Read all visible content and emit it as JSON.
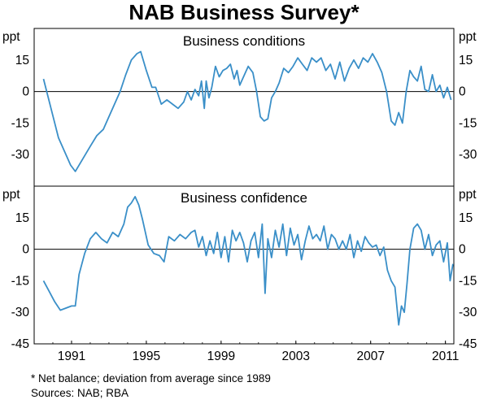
{
  "chart_data": {
    "type": "line",
    "title": "NAB Business Survey*",
    "footnote": "*    Net balance; deviation from average since 1989",
    "sources": "Sources: NAB; RBA",
    "x_range": [
      1989.0,
      2011.45
    ],
    "x_ticks": [
      "1991",
      "1995",
      "1999",
      "2003",
      "2007",
      "2011"
    ],
    "line_color": "#3a8fc8",
    "panels": [
      {
        "title": "Business conditions",
        "unit": "ppt",
        "ylim": [
          -45,
          30
        ],
        "y_ticks": [
          "15",
          "0",
          "-15",
          "-30"
        ],
        "y_tick_values": [
          15,
          0,
          -15,
          -30
        ],
        "series": [
          {
            "name": "Business conditions",
            "x": [
              1989.5,
              1989.9,
              1990.3,
              1990.7,
              1990.95,
              1991.2,
              1991.6,
              1992.0,
              1992.35,
              1992.7,
              1993.0,
              1993.3,
              1993.6,
              1993.9,
              1994.2,
              1994.5,
              1994.7,
              1995.0,
              1995.3,
              1995.5,
              1995.8,
              1996.1,
              1996.4,
              1996.7,
              1997.0,
              1997.2,
              1997.4,
              1997.6,
              1997.8,
              1997.95,
              1998.1,
              1998.2,
              1998.35,
              1998.5,
              1998.7,
              1998.9,
              1999.1,
              1999.3,
              1999.5,
              1999.7,
              1999.85,
              2000.0,
              2000.2,
              2000.45,
              2000.7,
              2000.9,
              2001.1,
              2001.3,
              2001.5,
              2001.7,
              2001.9,
              2002.1,
              2002.35,
              2002.6,
              2002.85,
              2003.1,
              2003.35,
              2003.6,
              2003.85,
              2004.1,
              2004.35,
              2004.6,
              2004.85,
              2005.1,
              2005.35,
              2005.6,
              2005.85,
              2006.1,
              2006.35,
              2006.6,
              2006.85,
              2007.1,
              2007.35,
              2007.6,
              2007.85,
              2008.1,
              2008.3,
              2008.5,
              2008.7,
              2008.9,
              2009.1,
              2009.3,
              2009.5,
              2009.7,
              2009.9,
              2010.1,
              2010.3,
              2010.5,
              2010.7,
              2010.9,
              2011.1,
              2011.3
            ],
            "y": [
              6,
              -8,
              -22,
              -30,
              -35,
              -38,
              -32,
              -26,
              -21,
              -18,
              -12,
              -6,
              0,
              8,
              15,
              18,
              19,
              10,
              2,
              2,
              -6,
              -4,
              -6,
              -8,
              -5,
              0,
              -4,
              1,
              -2,
              5,
              -8,
              5,
              -3,
              2,
              12,
              7,
              10,
              11,
              13,
              6,
              10,
              3,
              7,
              12,
              9,
              0,
              -12,
              -14,
              -13,
              -3,
              0,
              4,
              11,
              9,
              12,
              16,
              13,
              10,
              16,
              14,
              16,
              10,
              13,
              6,
              14,
              5,
              11,
              15,
              11,
              16,
              14,
              18,
              14,
              9,
              0,
              -14,
              -16,
              -10,
              -15,
              0,
              10,
              7,
              5,
              12,
              1,
              0,
              8,
              0,
              3,
              -3,
              2,
              -4
            ]
          }
        ]
      },
      {
        "title": "Business confidence",
        "unit": "ppt",
        "ylim": [
          -45,
          30
        ],
        "y_ticks": [
          "15",
          "0",
          "-15",
          "-30",
          "-45"
        ],
        "y_tick_values": [
          15,
          0,
          -15,
          -30,
          -45
        ],
        "series": [
          {
            "name": "Business confidence",
            "x": [
              1989.5,
              1989.8,
              1990.1,
              1990.4,
              1990.7,
              1991.0,
              1991.2,
              1991.4,
              1991.7,
              1992.0,
              1992.3,
              1992.6,
              1992.9,
              1993.2,
              1993.5,
              1993.8,
              1994.0,
              1994.2,
              1994.4,
              1994.6,
              1994.8,
              1995.1,
              1995.4,
              1995.7,
              1995.95,
              1996.2,
              1996.5,
              1996.8,
              1997.1,
              1997.4,
              1997.6,
              1997.8,
              1998.0,
              1998.2,
              1998.4,
              1998.6,
              1998.8,
              1999.0,
              1999.2,
              1999.4,
              1999.6,
              1999.8,
              2000.0,
              2000.2,
              2000.4,
              2000.6,
              2000.8,
              2001.0,
              2001.2,
              2001.35,
              2001.5,
              2001.7,
              2001.9,
              2002.1,
              2002.3,
              2002.5,
              2002.7,
              2002.9,
              2003.1,
              2003.3,
              2003.5,
              2003.7,
              2003.9,
              2004.1,
              2004.3,
              2004.5,
              2004.7,
              2004.9,
              2005.1,
              2005.3,
              2005.5,
              2005.7,
              2005.9,
              2006.1,
              2006.3,
              2006.5,
              2006.7,
              2006.9,
              2007.1,
              2007.3,
              2007.5,
              2007.7,
              2007.9,
              2008.1,
              2008.3,
              2008.5,
              2008.65,
              2008.8,
              2008.95,
              2009.1,
              2009.3,
              2009.5,
              2009.7,
              2009.9,
              2010.1,
              2010.3,
              2010.5,
              2010.7,
              2010.9,
              2011.1,
              2011.25,
              2011.4
            ],
            "y": [
              -15,
              -20,
              -25,
              -29,
              -28,
              -27,
              -27,
              -12,
              -2,
              5,
              8,
              5,
              3,
              8,
              6,
              12,
              20,
              22,
              25,
              21,
              14,
              2,
              -2,
              -3,
              -6,
              6,
              4,
              7,
              5,
              8,
              9,
              1,
              6,
              -3,
              4,
              -2,
              8,
              -4,
              6,
              -6,
              9,
              4,
              8,
              3,
              -6,
              4,
              8,
              -4,
              12,
              -21,
              5,
              -4,
              9,
              1,
              12,
              -3,
              10,
              2,
              7,
              -5,
              4,
              11,
              5,
              7,
              4,
              11,
              0,
              7,
              5,
              0,
              4,
              0,
              7,
              -4,
              4,
              -1,
              6,
              3,
              1,
              2,
              -3,
              1,
              -10,
              -15,
              -18,
              -36,
              -27,
              -30,
              -16,
              0,
              10,
              12,
              9,
              0,
              7,
              -3,
              2,
              4,
              -6,
              3,
              -15,
              -7
            ]
          }
        ]
      }
    ]
  }
}
